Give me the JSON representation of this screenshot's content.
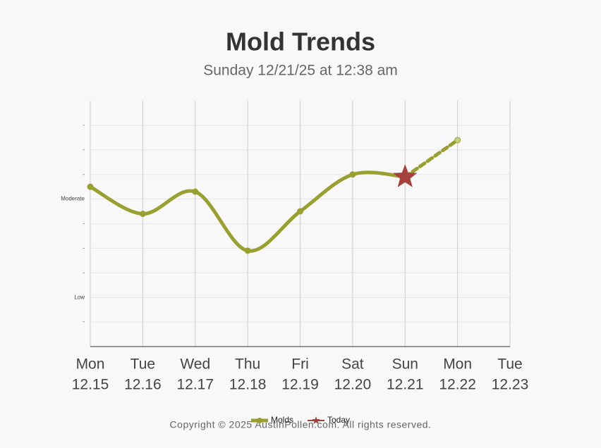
{
  "chart_data": {
    "type": "line",
    "title": "Mold Trends",
    "subtitle": "Sunday 12/21/25 at 12:38 am",
    "categories": [
      "Mon",
      "Tue",
      "Wed",
      "Thu",
      "Fri",
      "Sat",
      "Sun",
      "Mon",
      "Tue"
    ],
    "category_dates": [
      "12.15",
      "12.16",
      "12.17",
      "12.18",
      "12.19",
      "12.20",
      "12.21",
      "12.22",
      "12.23"
    ],
    "series": [
      {
        "name": "Molds",
        "color": "#9aa030",
        "values": [
          6.5,
          5.4,
          6.3,
          3.9,
          5.5,
          7.0,
          6.9,
          8.4,
          null
        ],
        "forecast_from": 6
      },
      {
        "name": "Today",
        "color": "#a5403a",
        "marker": "star",
        "values": [
          null,
          null,
          null,
          null,
          null,
          null,
          6.9,
          null,
          null
        ]
      }
    ],
    "ylim": [
      0,
      10
    ],
    "yticks": [
      {
        "value": 1,
        "label": "-"
      },
      {
        "value": 2,
        "label": "Low"
      },
      {
        "value": 3,
        "label": "-"
      },
      {
        "value": 4,
        "label": "-"
      },
      {
        "value": 5,
        "label": "-"
      },
      {
        "value": 6,
        "label": "Moderate"
      },
      {
        "value": 7,
        "label": "-"
      },
      {
        "value": 8,
        "label": "-"
      },
      {
        "value": 9,
        "label": "-"
      }
    ],
    "grid": true,
    "legend": "bottom",
    "footer": "Copyright © 2025 AustinPollen.com.  All rights reserved."
  }
}
